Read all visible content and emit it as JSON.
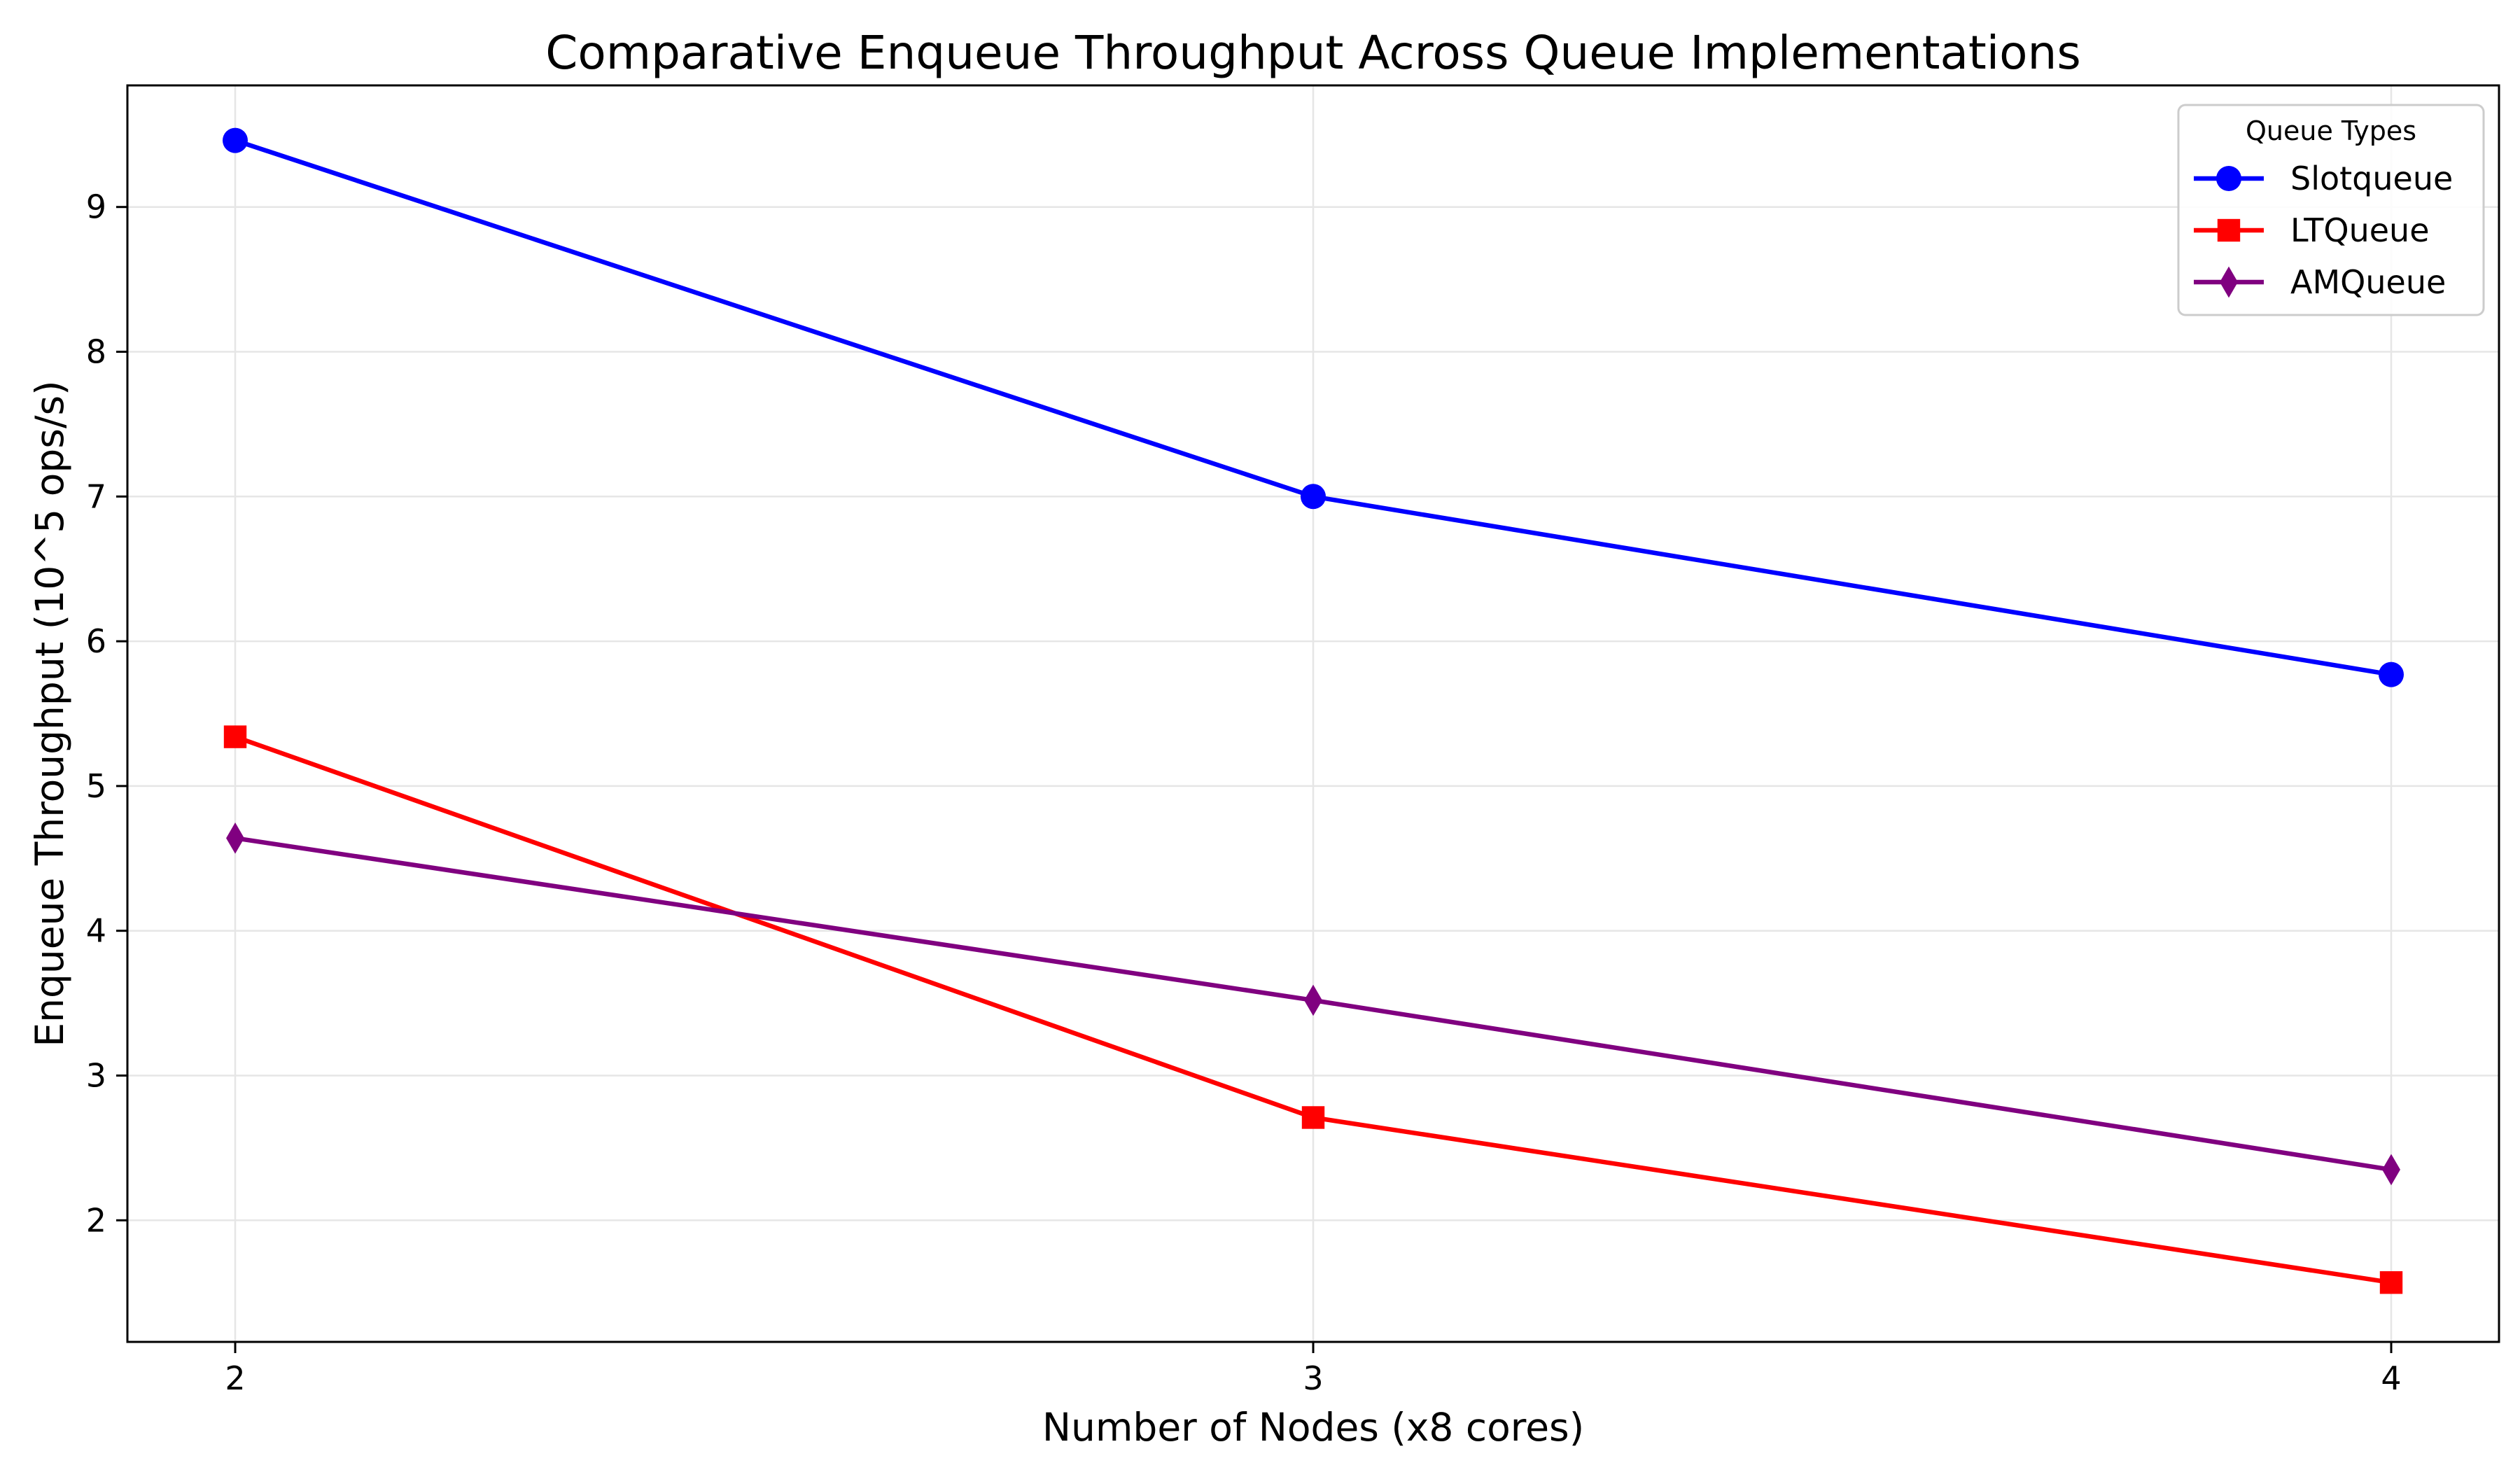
{
  "chart_data": {
    "type": "line",
    "title": "Comparative Enqueue Throughput Across Queue Implementations",
    "xlabel": "Number of Nodes (x8 cores)",
    "ylabel": "Enqueue Throughput (10^5 ops/s)",
    "x": [
      2,
      3,
      4
    ],
    "x_tick_labels": [
      "2",
      "3",
      "4"
    ],
    "xlim": [
      1.9,
      4.1
    ],
    "y_ticks": [
      2,
      3,
      4,
      5,
      6,
      7,
      8,
      9
    ],
    "y_tick_labels": [
      "2",
      "3",
      "4",
      "5",
      "6",
      "7",
      "8",
      "9"
    ],
    "ylim": [
      1.16,
      9.84
    ],
    "grid": true,
    "legend": {
      "title": "Queue Types",
      "placement": "top-right"
    },
    "series": [
      {
        "name": "Slotqueue",
        "values": [
          9.46,
          7.0,
          5.77
        ],
        "color": "#0000ff",
        "marker": "circle"
      },
      {
        "name": "LTQueue",
        "values": [
          5.34,
          2.71,
          1.57
        ],
        "color": "#ff0000",
        "marker": "square"
      },
      {
        "name": "AMQueue",
        "values": [
          4.64,
          3.52,
          2.35
        ],
        "color": "#800080",
        "marker": "diamond"
      }
    ]
  }
}
